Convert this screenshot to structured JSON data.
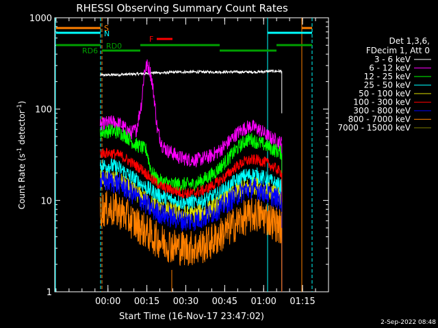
{
  "chart_data": {
    "type": "line",
    "title": "RHESSI Observing Summary Count Rates",
    "xlabel": "Start Time (16-Nov-17 23:47:02)",
    "ylabel": "Count Rate (s",
    "ylabel_sup1": "-1",
    "ylabel_mid": " detector",
    "ylabel_sup2": "-1",
    "ylabel_end": ")",
    "y_scale": "log",
    "ylim": [
      1,
      1000
    ],
    "xlim_minutes_from_start": [
      -7.5,
      98
    ],
    "x_ticks": [
      {
        "label": "00:00",
        "minutes": 13
      },
      {
        "label": "00:15",
        "minutes": 28
      },
      {
        "label": "00:30",
        "minutes": 43
      },
      {
        "label": "00:45",
        "minutes": 58
      },
      {
        "label": "01:00",
        "minutes": 73
      },
      {
        "label": "01:15",
        "minutes": 88
      }
    ],
    "y_ticks": [
      {
        "label": "1",
        "value": 1
      },
      {
        "label": "10",
        "value": 10
      },
      {
        "label": "100",
        "value": 100
      },
      {
        "label": "1000",
        "value": 1000
      }
    ],
    "legend_header": [
      "Det 1,3,6,",
      "FDecim 1, Att 0"
    ],
    "legend_position": "right",
    "series": [
      {
        "name": "3 - 6 keV",
        "color": "#ffffff",
        "x": [
          10,
          20,
          28,
          30,
          35,
          40,
          50,
          60,
          70,
          76,
          80
        ],
        "y": [
          235,
          240,
          245,
          250,
          250,
          255,
          255,
          255,
          255,
          260,
          260
        ]
      },
      {
        "name": "6 - 12 keV",
        "color": "#ff00ff",
        "x": [
          10,
          12,
          15,
          18,
          20,
          22,
          24,
          26,
          27,
          28,
          29,
          30,
          31,
          32,
          34,
          36,
          38,
          40,
          44,
          48,
          52,
          56,
          60,
          62,
          64,
          66,
          68,
          70,
          72,
          74,
          76,
          78,
          80
        ],
        "y": [
          65,
          70,
          72,
          68,
          60,
          55,
          60,
          120,
          260,
          300,
          280,
          200,
          120,
          60,
          40,
          35,
          33,
          30,
          28,
          28,
          30,
          35,
          45,
          52,
          58,
          62,
          65,
          62,
          58,
          52,
          48,
          45,
          42
        ]
      },
      {
        "name": "12 - 25 keV",
        "color": "#00ff00",
        "x": [
          10,
          14,
          18,
          21,
          23,
          26,
          28,
          29,
          30,
          32,
          34,
          38,
          42,
          46,
          50,
          54,
          58,
          62,
          64,
          66,
          68,
          70,
          72,
          74,
          76,
          78,
          80
        ],
        "y": [
          55,
          58,
          55,
          48,
          42,
          38,
          35,
          25,
          20,
          17,
          16,
          15,
          15,
          15,
          17,
          20,
          26,
          35,
          40,
          45,
          47,
          44,
          42,
          40,
          37,
          35,
          33
        ]
      },
      {
        "name": "25 - 50 keV",
        "color": "#00ffff",
        "x": [
          10,
          14,
          18,
          22,
          26,
          30,
          34,
          38,
          42,
          46,
          50,
          54,
          58,
          62,
          66,
          70,
          74,
          78,
          80
        ],
        "y": [
          24,
          24,
          22,
          18,
          15,
          12.5,
          11,
          10,
          9.5,
          9.5,
          10,
          11,
          13,
          16,
          18.5,
          19,
          17,
          15,
          14
        ]
      },
      {
        "name": "50 - 100 keV",
        "color": "#e0e000",
        "x": [
          10,
          14,
          18,
          22,
          26,
          30,
          34,
          38,
          42,
          46,
          50,
          54,
          58,
          62,
          66,
          70,
          74,
          78,
          80
        ],
        "y": [
          17,
          17,
          16,
          13,
          11,
          9,
          8,
          7.5,
          7,
          7,
          7.5,
          8.5,
          10,
          12,
          14,
          14.5,
          13,
          11.5,
          10.5
        ]
      },
      {
        "name": "100 - 300 keV",
        "color": "#ff0000",
        "x": [
          10,
          14,
          18,
          22,
          26,
          30,
          34,
          38,
          42,
          46,
          50,
          54,
          58,
          62,
          66,
          70,
          74,
          78,
          80
        ],
        "y": [
          33,
          33,
          31,
          26,
          22,
          17,
          14,
          13,
          12,
          12,
          13,
          15,
          18,
          23,
          27,
          28,
          26,
          22,
          20
        ]
      },
      {
        "name": "300 - 800 keV",
        "color": "#0000ff",
        "x": [
          10,
          14,
          18,
          22,
          26,
          30,
          34,
          38,
          42,
          46,
          50,
          54,
          58,
          62,
          66,
          70,
          74,
          78,
          80
        ],
        "y": [
          16,
          16,
          15,
          12,
          10,
          8,
          7,
          6.5,
          6,
          6,
          6.5,
          7.5,
          9,
          11,
          13,
          13.5,
          12,
          10.5,
          9.5
        ]
      },
      {
        "name": "800 - 7000 keV",
        "color": "#ff8000",
        "x": [
          10,
          14,
          18,
          22,
          26,
          30,
          34,
          38,
          42,
          46,
          50,
          54,
          58,
          62,
          66,
          70,
          74,
          78,
          80
        ],
        "y": [
          8,
          8,
          7.5,
          6,
          5,
          4,
          3.5,
          3.2,
          3,
          3,
          3.2,
          3.7,
          4.5,
          5.5,
          6.5,
          7,
          6.5,
          5.5,
          5
        ]
      },
      {
        "name": "7000 - 15000 keV",
        "color": "#808000",
        "x": [],
        "y": []
      }
    ],
    "annotations": [
      {
        "label": "S",
        "color": "#ff8000"
      },
      {
        "label": "N",
        "color": "#00ffff"
      },
      {
        "label": "F",
        "color": "#ff0000"
      },
      {
        "label": "RD0",
        "color": "#00a000"
      },
      {
        "label": "RD6",
        "color": "#00a000"
      }
    ],
    "footer_date": "2-Sep-2022 08:48"
  }
}
